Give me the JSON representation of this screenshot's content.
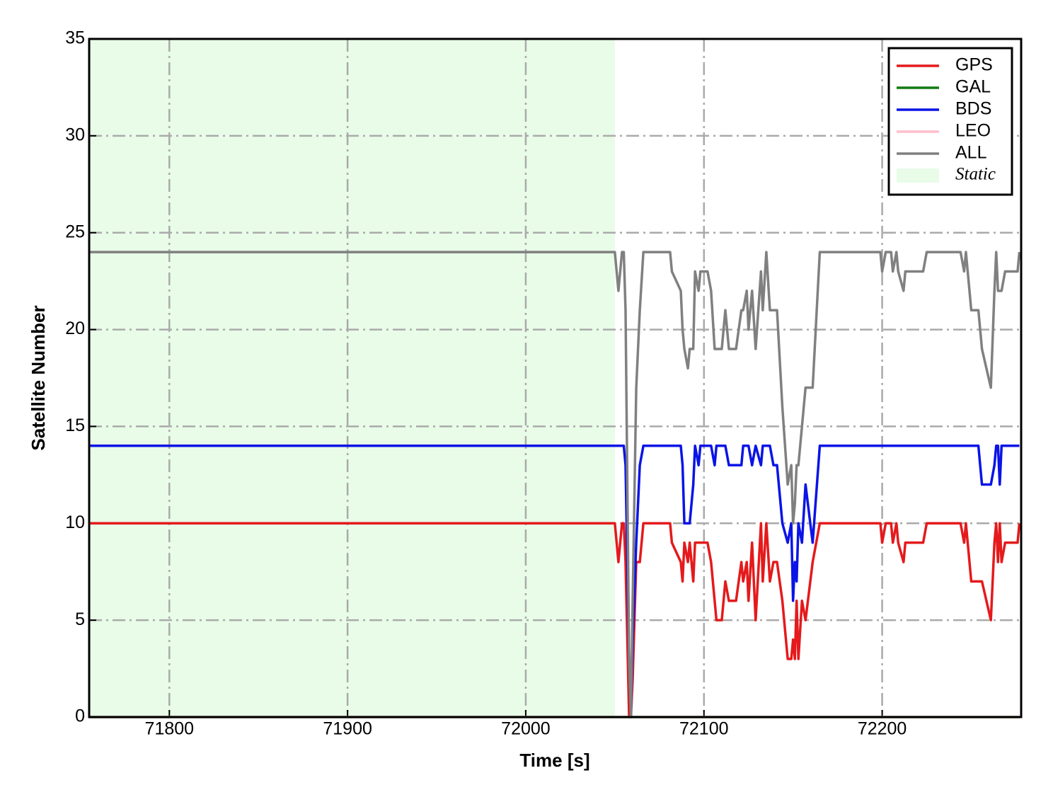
{
  "chart_data": {
    "type": "line",
    "xlabel": "Time [s]",
    "ylabel": "Satellite Number",
    "xlim": [
      71755,
      72278
    ],
    "ylim": [
      0,
      35
    ],
    "xticks": [
      71800,
      71900,
      72000,
      72100,
      72200
    ],
    "yticks": [
      0,
      5,
      10,
      15,
      20,
      25,
      30,
      35
    ],
    "grid": true,
    "legend": "upper right",
    "shaded_region": {
      "label": "Static",
      "xrange": [
        71755,
        72050
      ],
      "color": "#e8fce8"
    },
    "x": [
      71755,
      72050,
      72052,
      72054,
      72055,
      72056,
      72058,
      72059,
      72060,
      72062,
      72064,
      72066,
      72081,
      72082,
      72087,
      72088,
      72089,
      72091,
      72092,
      72094,
      72095,
      72097,
      72098,
      72102,
      72104,
      72106,
      72107,
      72110,
      72112,
      72114,
      72118,
      72121,
      72122,
      72124,
      72125,
      72127,
      72129,
      72132,
      72133,
      72135,
      72137,
      72139,
      72141,
      72144,
      72147,
      72149,
      72150,
      72151,
      72152,
      72153,
      72155,
      72157,
      72161,
      72165,
      72199,
      72200,
      72202,
      72205,
      72206,
      72208,
      72209,
      72212,
      72213,
      72223,
      72225,
      72244,
      72246,
      72247,
      72248,
      72250,
      72254,
      72256,
      72261,
      72263,
      72264,
      72265,
      72266,
      72267,
      72269,
      72276,
      72277
    ],
    "series": [
      {
        "name": "GPS",
        "color": "#e41a1c",
        "values": [
          10,
          10,
          8,
          10,
          10,
          8,
          0,
          0,
          2,
          8,
          8,
          10,
          10,
          9,
          8,
          7,
          9,
          8,
          9,
          7,
          9,
          9,
          9,
          9,
          8,
          6,
          5,
          5,
          7,
          6,
          6,
          8,
          7,
          8,
          6,
          9,
          5,
          10,
          7,
          10,
          7,
          8,
          8,
          6,
          3,
          3,
          4,
          3,
          6,
          3,
          6,
          5,
          8,
          10,
          10,
          9,
          10,
          10,
          9,
          10,
          9,
          8,
          9,
          9,
          10,
          10,
          9,
          10,
          9,
          7,
          7,
          7,
          5,
          9,
          10,
          8,
          10,
          8,
          9,
          9,
          10
        ]
      },
      {
        "name": "GAL",
        "color": "#137a13",
        "values": [
          0,
          0,
          0,
          0,
          0,
          0,
          0,
          0,
          0,
          0,
          0,
          0,
          0,
          0,
          0,
          0,
          0,
          0,
          0,
          0,
          0,
          0,
          0,
          0,
          0,
          0,
          0,
          0,
          0,
          0,
          0,
          0,
          0,
          0,
          0,
          0,
          0,
          0,
          0,
          0,
          0,
          0,
          0,
          0,
          0,
          0,
          0,
          0,
          0,
          0,
          0,
          0,
          0,
          0,
          0,
          0,
          0,
          0,
          0,
          0,
          0,
          0,
          0,
          0,
          0,
          0,
          0,
          0,
          0,
          0,
          0,
          0,
          0,
          0,
          0,
          0,
          0,
          0,
          0,
          0,
          0
        ]
      },
      {
        "name": "BDS",
        "color": "#0a14e6",
        "values": [
          14,
          14,
          14,
          14,
          14,
          13,
          3,
          0,
          4,
          9,
          13,
          14,
          14,
          14,
          14,
          13,
          10,
          10,
          10,
          12,
          14,
          13,
          14,
          14,
          14,
          13,
          14,
          14,
          14,
          13,
          13,
          13,
          14,
          14,
          14,
          13,
          14,
          13,
          14,
          14,
          14,
          13,
          13,
          10,
          9,
          10,
          6,
          8,
          7,
          10,
          9,
          12,
          9,
          14,
          14,
          14,
          14,
          14,
          14,
          14,
          14,
          14,
          14,
          14,
          14,
          14,
          14,
          14,
          14,
          14,
          14,
          12,
          12,
          13,
          14,
          14,
          12,
          14,
          14,
          14,
          14
        ]
      },
      {
        "name": "LEO",
        "color": "#ffbfcb",
        "values": [
          0,
          0,
          0,
          0,
          0,
          0,
          0,
          0,
          0,
          0,
          0,
          0,
          0,
          0,
          0,
          0,
          0,
          0,
          0,
          0,
          0,
          0,
          0,
          0,
          0,
          0,
          0,
          0,
          0,
          0,
          0,
          0,
          0,
          0,
          0,
          0,
          0,
          0,
          0,
          0,
          0,
          0,
          0,
          0,
          0,
          0,
          0,
          0,
          0,
          0,
          0,
          0,
          0,
          0,
          0,
          0,
          0,
          0,
          0,
          0,
          0,
          0,
          0,
          0,
          0,
          0,
          0,
          0,
          0,
          0,
          0,
          0,
          0,
          0,
          0,
          0,
          0,
          0,
          0,
          0,
          0
        ]
      },
      {
        "name": "ALL",
        "color": "#808080",
        "values": [
          24,
          24,
          22,
          24,
          24,
          21,
          3,
          0,
          6,
          17,
          21,
          24,
          24,
          23,
          22,
          20,
          19,
          18,
          19,
          19,
          23,
          22,
          23,
          23,
          22,
          19,
          19,
          19,
          21,
          19,
          19,
          21,
          21,
          22,
          20,
          22,
          19,
          23,
          21,
          24,
          21,
          21,
          21,
          16,
          12,
          13,
          10,
          11,
          13,
          13,
          15,
          17,
          17,
          24,
          24,
          23,
          24,
          24,
          23,
          24,
          23,
          22,
          23,
          23,
          24,
          24,
          23,
          24,
          23,
          21,
          21,
          19,
          17,
          22,
          24,
          22,
          22,
          22,
          23,
          23,
          24
        ]
      }
    ]
  }
}
